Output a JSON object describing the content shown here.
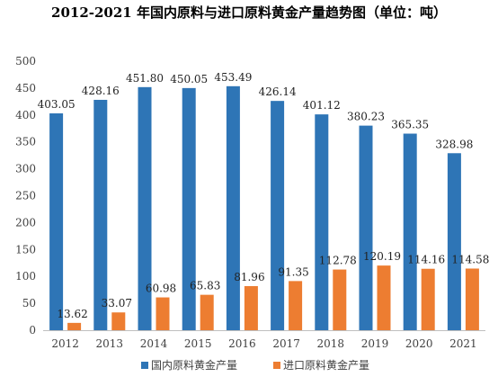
{
  "chart_data": {
    "type": "bar",
    "title": "2012-2021 年国内原料与进口原料黄金产量趋势图（单位：吨）",
    "xlabel": "",
    "ylabel": "",
    "categories": [
      "2012",
      "2013",
      "2014",
      "2015",
      "2016",
      "2017",
      "2018",
      "2019",
      "2020",
      "2021"
    ],
    "series": [
      {
        "name": "国内原料黄金产量",
        "color": "#2E75B6",
        "values": [
          403.05,
          428.16,
          451.8,
          450.05,
          453.49,
          426.14,
          401.12,
          380.23,
          365.35,
          328.98
        ],
        "labels": [
          "403.05",
          "428.16",
          "451.80",
          "450.05",
          "453.49",
          "426.14",
          "401.12",
          "380.23",
          "365.35",
          "328.98"
        ]
      },
      {
        "name": "进口原料黄金产量",
        "color": "#ED7D31",
        "values": [
          13.62,
          33.07,
          60.98,
          65.83,
          81.96,
          91.35,
          112.78,
          120.19,
          114.16,
          114.58
        ],
        "labels": [
          "13.62",
          "33.07",
          "60.98",
          "65.83",
          "81.96",
          "91.35",
          "112.78",
          "120.19",
          "114.16",
          "114.58"
        ]
      }
    ],
    "ylim": [
      0,
      500
    ],
    "yticks": [
      "0",
      "50",
      "100",
      "150",
      "200",
      "250",
      "300",
      "350",
      "400",
      "450",
      "500"
    ],
    "grid": false,
    "legend_position": "bottom"
  }
}
